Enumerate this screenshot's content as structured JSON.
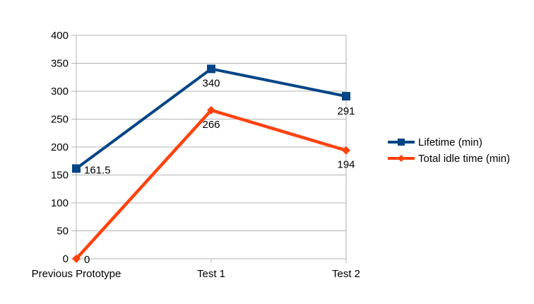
{
  "chart_data": {
    "type": "line",
    "title": "",
    "xlabel": "",
    "ylabel": "",
    "categories": [
      "Previous Prototype",
      "Test 1",
      "Test 2"
    ],
    "ylim": [
      0,
      400
    ],
    "yticks": [
      0,
      50,
      100,
      150,
      200,
      250,
      300,
      350,
      400
    ],
    "grid": "horizontal",
    "legend_position": "right",
    "series": [
      {
        "name": "Lifetime (min)",
        "values": [
          161.5,
          340,
          291
        ],
        "labels": [
          "161.5",
          "340",
          "291"
        ],
        "color": "#004586",
        "marker": "square"
      },
      {
        "name": "Total idle time (min)",
        "values": [
          0,
          266,
          194
        ],
        "labels": [
          "0",
          "266",
          "194"
        ],
        "color": "#ff420e",
        "marker": "diamond"
      }
    ]
  }
}
